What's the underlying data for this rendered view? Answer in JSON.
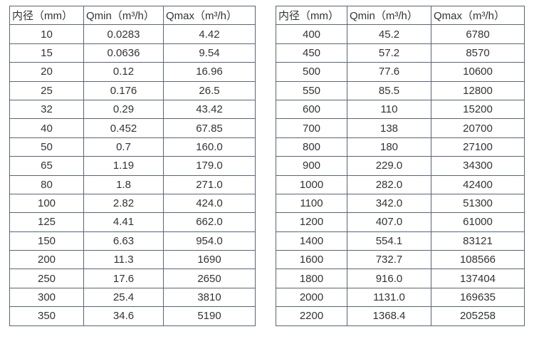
{
  "page": {
    "background_color": "#ffffff",
    "border_color": "#5a6572",
    "text_color": "#333333"
  },
  "chart_data": [
    {
      "type": "table",
      "title": "",
      "columns": [
        "内径（mm）",
        "Qmin（m³/h）",
        "Qmax（m³/h）"
      ],
      "rows": [
        [
          "10",
          "0.0283",
          "4.42"
        ],
        [
          "15",
          "0.0636",
          "9.54"
        ],
        [
          "20",
          "0.12",
          "16.96"
        ],
        [
          "25",
          "0.176",
          "26.5"
        ],
        [
          "32",
          "0.29",
          "43.42"
        ],
        [
          "40",
          "0.452",
          "67.85"
        ],
        [
          "50",
          "0.7",
          "160.0"
        ],
        [
          "65",
          "1.19",
          "179.0"
        ],
        [
          "80",
          "1.8",
          "271.0"
        ],
        [
          "100",
          "2.82",
          "424.0"
        ],
        [
          "125",
          "4.41",
          "662.0"
        ],
        [
          "150",
          "6.63",
          "954.0"
        ],
        [
          "200",
          "11.3",
          "1690"
        ],
        [
          "250",
          "17.6",
          "2650"
        ],
        [
          "300",
          "25.4",
          "3810"
        ],
        [
          "350",
          "34.6",
          "5190"
        ]
      ]
    },
    {
      "type": "table",
      "title": "",
      "columns": [
        "内径（mm）",
        "Qmin（m³/h）",
        "Qmax（m³/h）"
      ],
      "rows": [
        [
          "400",
          "45.2",
          "6780"
        ],
        [
          "450",
          "57.2",
          "8570"
        ],
        [
          "500",
          "77.6",
          "10600"
        ],
        [
          "550",
          "85.5",
          "12800"
        ],
        [
          "600",
          "110",
          "15200"
        ],
        [
          "700",
          "138",
          "20700"
        ],
        [
          "800",
          "180",
          "27100"
        ],
        [
          "900",
          "229.0",
          "34300"
        ],
        [
          "1000",
          "282.0",
          "42400"
        ],
        [
          "1100",
          "342.0",
          "51300"
        ],
        [
          "1200",
          "407.0",
          "61000"
        ],
        [
          "1400",
          "554.1",
          "83121"
        ],
        [
          "1600",
          "732.7",
          "108566"
        ],
        [
          "1800",
          "916.0",
          "137404"
        ],
        [
          "2000",
          "1131.0",
          "169635"
        ],
        [
          "2200",
          "1368.4",
          "205258"
        ]
      ]
    }
  ]
}
